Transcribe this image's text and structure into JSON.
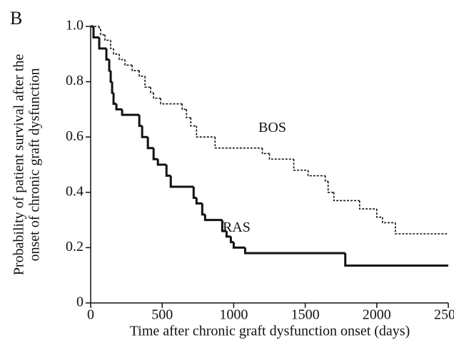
{
  "chart_data": {
    "type": "line",
    "step": true,
    "panel_label": "B",
    "xlabel": "Time after chronic graft dysfunction onset (days)",
    "ylabel": [
      "Probability of patient survival after the",
      "onset of chronic graft dysfunction"
    ],
    "xlim": [
      0,
      2500
    ],
    "xticks": [
      0,
      500,
      1000,
      1500,
      2000,
      2500
    ],
    "ylim": [
      0,
      1
    ],
    "yticks": [
      0,
      0.2,
      0.4,
      0.6,
      0.8,
      {
        "value": 1,
        "label": "1.0"
      }
    ],
    "series": [
      {
        "name": "RAS",
        "color": "#111111",
        "line_style": "solid",
        "line_width": 3,
        "x": [
          0,
          20,
          60,
          110,
          130,
          140,
          150,
          160,
          180,
          220,
          340,
          360,
          400,
          440,
          470,
          530,
          560,
          720,
          740,
          780,
          800,
          920,
          950,
          980,
          1000,
          1080,
          1780,
          2500
        ],
        "values": [
          1.0,
          0.96,
          0.92,
          0.88,
          0.84,
          0.8,
          0.76,
          0.72,
          0.7,
          0.68,
          0.64,
          0.6,
          0.56,
          0.52,
          0.5,
          0.46,
          0.42,
          0.38,
          0.36,
          0.32,
          0.3,
          0.26,
          0.24,
          0.22,
          0.2,
          0.18,
          0.135,
          0.135
        ],
        "label_at": [
          1020,
          0.27
        ]
      },
      {
        "name": "BOS",
        "color": "#111111",
        "line_style": "dotted",
        "line_width": 1.6,
        "x": [
          0,
          60,
          70,
          100,
          140,
          160,
          200,
          240,
          290,
          340,
          380,
          420,
          440,
          490,
          640,
          670,
          700,
          740,
          870,
          1200,
          1250,
          1420,
          1520,
          1640,
          1660,
          1700,
          1880,
          2000,
          2040,
          2130,
          2500
        ],
        "values": [
          1.0,
          0.99,
          0.97,
          0.95,
          0.92,
          0.9,
          0.88,
          0.86,
          0.84,
          0.82,
          0.78,
          0.76,
          0.74,
          0.72,
          0.7,
          0.67,
          0.64,
          0.6,
          0.56,
          0.54,
          0.52,
          0.48,
          0.46,
          0.44,
          0.4,
          0.37,
          0.34,
          0.31,
          0.29,
          0.25,
          0.25
        ],
        "label_at": [
          1270,
          0.63
        ]
      }
    ]
  }
}
